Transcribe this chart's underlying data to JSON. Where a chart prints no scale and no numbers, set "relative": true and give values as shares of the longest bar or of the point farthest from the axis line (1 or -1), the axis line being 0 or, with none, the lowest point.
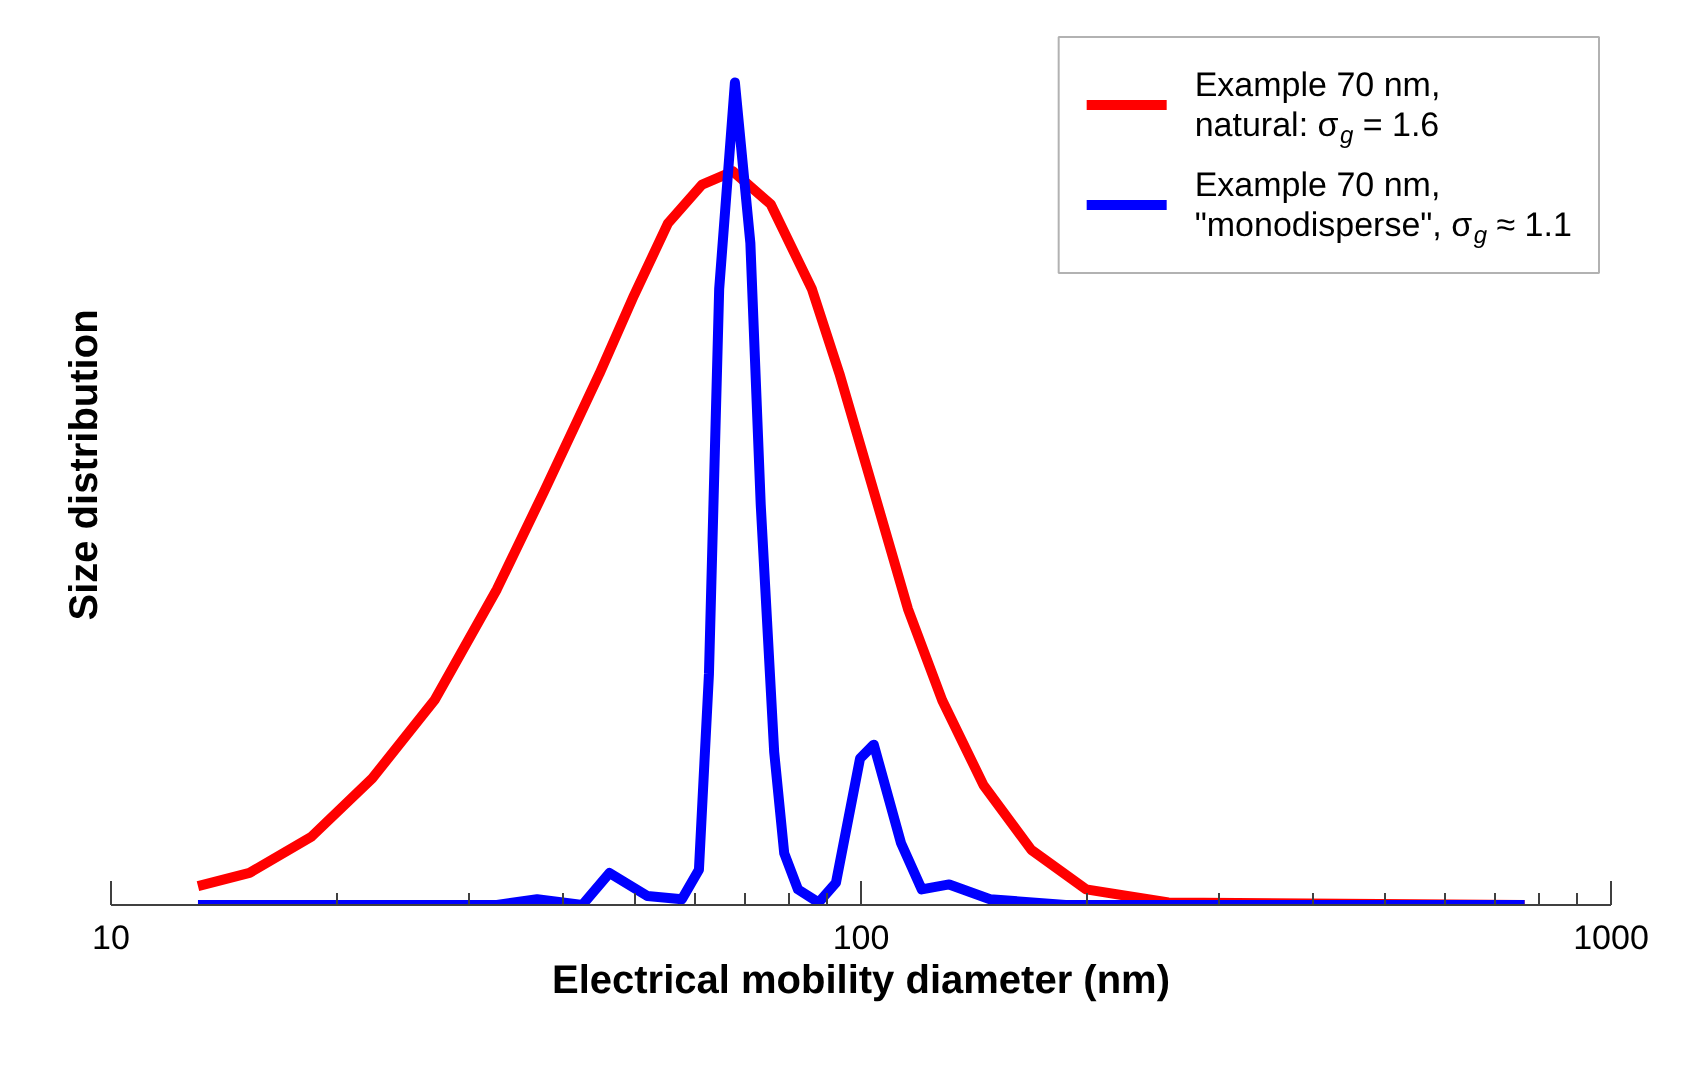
{
  "chart_data": {
    "type": "line",
    "xlabel": "Electrical mobility diameter (nm)",
    "ylabel": "Size distribution",
    "relative": true,
    "log": "x",
    "xlim": [
      10,
      1000
    ],
    "xticks": [
      10,
      100,
      1000
    ],
    "grid": false,
    "legend": "top right",
    "marker": "none",
    "line_style": "solid",
    "series": [
      {
        "name": "Example 70 nm,\nnatural: σ$_{g}$ = 1.6",
        "color": "#ff0000",
        "x": [
          13.06,
          15.3,
          18.5,
          22.3,
          27.0,
          32.7,
          37.8,
          44.8,
          49.8,
          55.3,
          61.4,
          67.5,
          75.8,
          86.0,
          93.6,
          104,
          115.5,
          128.3,
          145.6,
          168.7,
          199.6,
          257,
          767
        ],
        "values": [
          0.023,
          0.039,
          0.083,
          0.154,
          0.249,
          0.384,
          0.503,
          0.646,
          0.741,
          0.829,
          0.876,
          0.892,
          0.852,
          0.749,
          0.646,
          0.503,
          0.36,
          0.249,
          0.146,
          0.067,
          0.019,
          0.003,
          0
        ]
      },
      {
        "name": "Example 70 nm,\n\"monodisperse\", σ$_{g}$ ≈ 1.1",
        "color": "#0000ff",
        "x": [
          13.06,
          32.7,
          37.0,
          42.5,
          46.2,
          51.9,
          57.7,
          60.8,
          62.7,
          64.7,
          67.9,
          71.2,
          73.5,
          76.6,
          79.0,
          82.4,
          87.8,
          92.6,
          99.7,
          104,
          113.1,
          120.5,
          131.1,
          148.6,
          187.5,
          767
        ],
        "values": [
          0,
          0,
          0.007,
          0,
          0.039,
          0.011,
          0.007,
          0.043,
          0.281,
          0.749,
          1.0,
          0.805,
          0.487,
          0.186,
          0.063,
          0.019,
          0.003,
          0.027,
          0.178,
          0.195,
          0.075,
          0.019,
          0.025,
          0.007,
          0,
          0
        ]
      }
    ]
  }
}
